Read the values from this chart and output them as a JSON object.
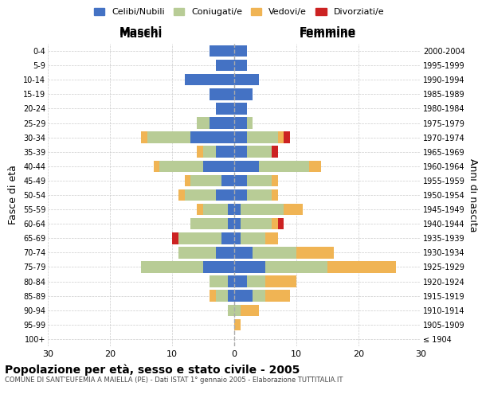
{
  "age_groups": [
    "100+",
    "95-99",
    "90-94",
    "85-89",
    "80-84",
    "75-79",
    "70-74",
    "65-69",
    "60-64",
    "55-59",
    "50-54",
    "45-49",
    "40-44",
    "35-39",
    "30-34",
    "25-29",
    "20-24",
    "15-19",
    "10-14",
    "5-9",
    "0-4"
  ],
  "birth_years": [
    "≤ 1904",
    "1905-1909",
    "1910-1914",
    "1915-1919",
    "1920-1924",
    "1925-1929",
    "1930-1934",
    "1935-1939",
    "1940-1944",
    "1945-1949",
    "1950-1954",
    "1955-1959",
    "1960-1964",
    "1965-1969",
    "1970-1974",
    "1975-1979",
    "1980-1984",
    "1985-1989",
    "1990-1994",
    "1995-1999",
    "2000-2004"
  ],
  "maschi": {
    "celibi": [
      0,
      0,
      0,
      1,
      1,
      5,
      3,
      2,
      1,
      1,
      3,
      2,
      5,
      3,
      7,
      4,
      3,
      4,
      8,
      3,
      4
    ],
    "coniugati": [
      0,
      0,
      1,
      2,
      3,
      10,
      6,
      7,
      6,
      4,
      5,
      5,
      7,
      2,
      7,
      2,
      0,
      0,
      0,
      0,
      0
    ],
    "vedovi": [
      0,
      0,
      0,
      1,
      0,
      0,
      0,
      0,
      0,
      1,
      1,
      1,
      1,
      1,
      1,
      0,
      0,
      0,
      0,
      0,
      0
    ],
    "divorziati": [
      0,
      0,
      0,
      0,
      0,
      0,
      0,
      1,
      0,
      0,
      0,
      0,
      0,
      0,
      0,
      0,
      0,
      0,
      0,
      0,
      0
    ]
  },
  "femmine": {
    "nubili": [
      0,
      0,
      0,
      3,
      2,
      5,
      3,
      1,
      1,
      1,
      2,
      2,
      4,
      2,
      2,
      2,
      2,
      3,
      4,
      2,
      2
    ],
    "coniugate": [
      0,
      0,
      1,
      2,
      3,
      10,
      7,
      4,
      5,
      7,
      4,
      4,
      8,
      4,
      5,
      1,
      0,
      0,
      0,
      0,
      0
    ],
    "vedove": [
      0,
      1,
      3,
      4,
      5,
      11,
      6,
      2,
      1,
      3,
      1,
      1,
      2,
      0,
      1,
      0,
      0,
      0,
      0,
      0,
      0
    ],
    "divorziate": [
      0,
      0,
      0,
      0,
      0,
      0,
      0,
      0,
      1,
      0,
      0,
      0,
      0,
      1,
      1,
      0,
      0,
      0,
      0,
      0,
      0
    ]
  },
  "colors": {
    "celibi": "#4472c4",
    "coniugati": "#b8cc96",
    "vedovi": "#f0b454",
    "divorziati": "#cc2222"
  },
  "title": "Popolazione per età, sesso e stato civile - 2005",
  "subtitle": "COMUNE DI SANT'EUFEMIA A MAIELLA (PE) - Dati ISTAT 1° gennaio 2005 - Elaborazione TUTTITALIA.IT",
  "ylabel_left": "Fasce di età",
  "ylabel_right": "Anni di nascita",
  "xlabel_left": "Maschi",
  "xlabel_right": "Femmine",
  "xlim": 30,
  "bg_color": "#ffffff",
  "grid_color": "#cccccc"
}
